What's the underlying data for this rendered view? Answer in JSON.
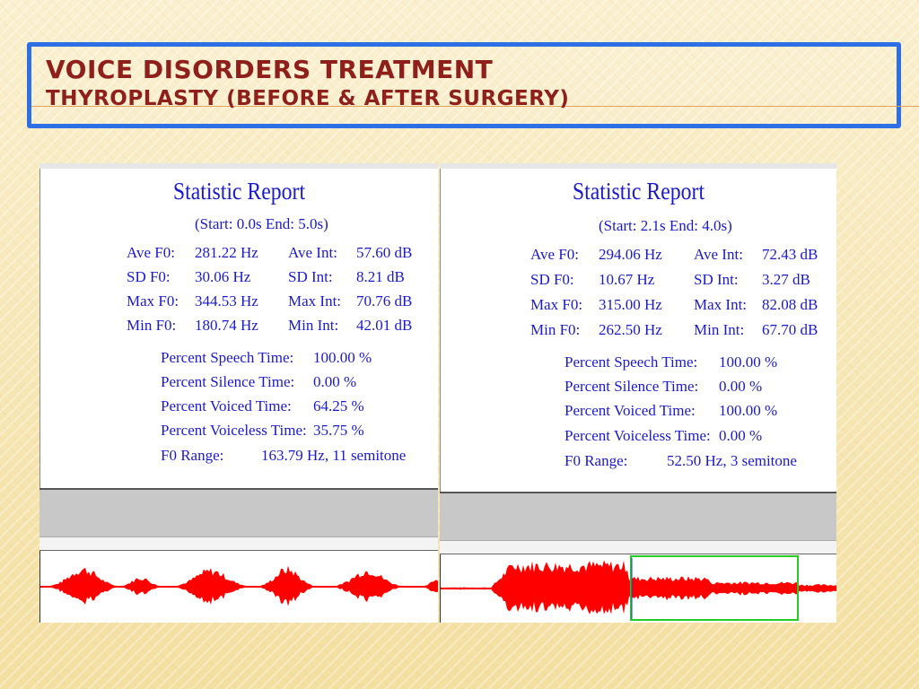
{
  "slide": {
    "title": "Voice Disorders treatment",
    "subtitle": "Thyroplasty (Before & After Surgery)"
  },
  "colors": {
    "title": "#8e1f1a",
    "frame": "#2f6fe6",
    "report_text": "#1a1acc",
    "waveform": "#ff0000",
    "selection": "#22cc22"
  },
  "before": {
    "report_title": "Statistic Report",
    "range": "(Start: 0.0s    End: 5.0s)",
    "stats": [
      {
        "label": "Ave F0:",
        "value": "281.22 Hz",
        "label2": "Ave Int:",
        "value2": "57.60 dB"
      },
      {
        "label": "SD F0:",
        "value": "30.06 Hz",
        "label2": "SD Int:",
        "value2": "8.21 dB"
      },
      {
        "label": "Max F0:",
        "value": "344.53 Hz",
        "label2": "Max Int:",
        "value2": "70.76 dB"
      },
      {
        "label": "Min F0:",
        "value": "180.74 Hz",
        "label2": "Min Int:",
        "value2": "42.01 dB"
      }
    ],
    "percents": [
      {
        "label": "Percent Speech Time:",
        "value": "100.00 %"
      },
      {
        "label": "Percent Silence Time:",
        "value": "0.00 %"
      },
      {
        "label": "Percent Voiced Time:",
        "value": "64.25 %"
      },
      {
        "label": "Percent Voiceless Time:",
        "value": "35.75 %"
      }
    ],
    "f0_range_label": "F0 Range:",
    "f0_range_value": "163.79 Hz,  11 semitone"
  },
  "after": {
    "report_title": "Statistic Report",
    "range": "(Start: 2.1s    End: 4.0s)",
    "stats": [
      {
        "label": "Ave F0:",
        "value": "294.06 Hz",
        "label2": "Ave Int:",
        "value2": "72.43 dB"
      },
      {
        "label": "SD F0:",
        "value": "10.67 Hz",
        "label2": "SD Int:",
        "value2": "3.27 dB"
      },
      {
        "label": "Max F0:",
        "value": "315.00 Hz",
        "label2": "Max Int:",
        "value2": "82.08 dB"
      },
      {
        "label": "Min F0:",
        "value": "262.50 Hz",
        "label2": "Min Int:",
        "value2": "67.70 dB"
      }
    ],
    "percents": [
      {
        "label": "Percent Speech Time:",
        "value": "100.00 %"
      },
      {
        "label": "Percent Silence Time:",
        "value": "0.00 %"
      },
      {
        "label": "Percent Voiced Time:",
        "value": "100.00 %"
      },
      {
        "label": "Percent Voiceless Time:",
        "value": "0.00 %"
      }
    ],
    "f0_range_label": "F0 Range:",
    "f0_range_value": "52.50 Hz,  3 semitone"
  }
}
